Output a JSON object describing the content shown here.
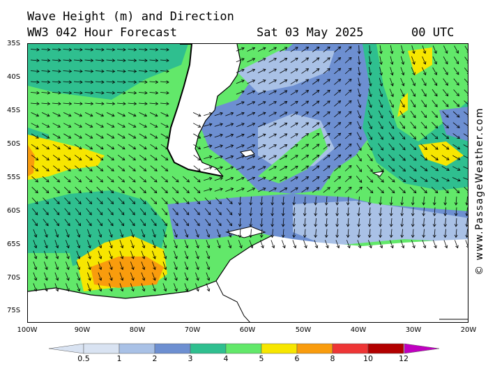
{
  "header": {
    "title_line1": "Wave Height (m) and Direction",
    "title_line2_left": "WW3 042 Hour Forecast",
    "title_date": "Sat 03 May 2025",
    "title_time": "00 UTC"
  },
  "credit": "© www.PassageWeather.com",
  "map": {
    "lat_labels": [
      "35S",
      "40S",
      "45S",
      "50S",
      "55S",
      "60S",
      "65S",
      "70S",
      "75S"
    ],
    "lon_labels": [
      "100W",
      "90W",
      "80W",
      "70W",
      "60W",
      "50W",
      "40W",
      "30W",
      "20W"
    ],
    "land_color": "#ffffff",
    "coast_color": "#000000",
    "arrow_color": "#000000"
  },
  "legend": {
    "breaks": [
      "0.5",
      "1",
      "2",
      "3",
      "4",
      "5",
      "6",
      "8",
      "10",
      "12"
    ],
    "colors": [
      "#d9e3f2",
      "#a9c1e6",
      "#6d8fd1",
      "#2fbf8f",
      "#62e86a",
      "#f7e600",
      "#f99c0d",
      "#ee3535",
      "#b20000",
      "#c000c0"
    ]
  }
}
